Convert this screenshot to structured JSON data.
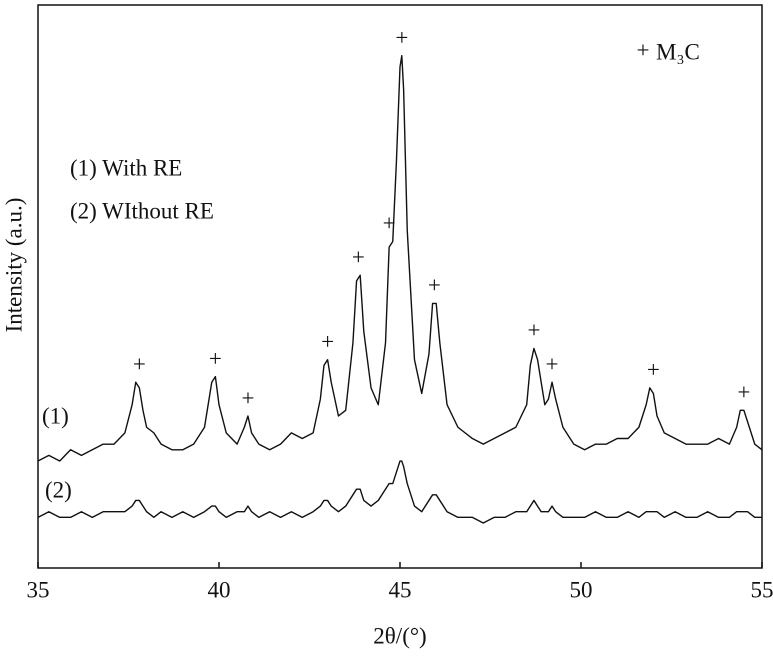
{
  "chart_data": {
    "type": "line",
    "xlabel": "2θ/(°)",
    "ylabel": "Intensity (a.u.)",
    "xlim": [
      35,
      55
    ],
    "xticks": [
      35,
      40,
      45,
      50,
      55
    ],
    "ylim": [
      0,
      100
    ],
    "grid": false,
    "x": [
      35,
      35.3,
      35.6,
      35.9,
      36.2,
      36.5,
      36.8,
      37.1,
      37.4,
      37.6,
      37.7,
      37.8,
      37.9,
      38.0,
      38.2,
      38.4,
      38.7,
      39.0,
      39.3,
      39.6,
      39.8,
      39.9,
      40.0,
      40.2,
      40.5,
      40.7,
      40.8,
      40.9,
      41.1,
      41.4,
      41.7,
      42.0,
      42.3,
      42.6,
      42.8,
      42.9,
      43.0,
      43.1,
      43.3,
      43.5,
      43.7,
      43.8,
      43.9,
      44.0,
      44.2,
      44.4,
      44.6,
      44.7,
      44.8,
      44.9,
      45.0,
      45.05,
      45.1,
      45.2,
      45.4,
      45.6,
      45.8,
      45.9,
      46.0,
      46.1,
      46.3,
      46.6,
      47.0,
      47.3,
      47.6,
      47.9,
      48.2,
      48.5,
      48.6,
      48.7,
      48.8,
      48.9,
      49.0,
      49.1,
      49.2,
      49.3,
      49.5,
      49.8,
      50.1,
      50.4,
      50.7,
      51.0,
      51.3,
      51.6,
      51.8,
      51.9,
      52.0,
      52.1,
      52.3,
      52.6,
      52.9,
      53.2,
      53.5,
      53.8,
      54.1,
      54.3,
      54.4,
      54.5,
      54.6,
      54.8,
      55
    ],
    "series": [
      {
        "name": "(1) With RE",
        "label": "(1)",
        "color": "#111111",
        "values": [
          19,
          20,
          19,
          21,
          20,
          21,
          22,
          22,
          24,
          29,
          33,
          32,
          28,
          25,
          24,
          22,
          21,
          21,
          22,
          25,
          33,
          34,
          29,
          24,
          22,
          25,
          27,
          24,
          22,
          21,
          22,
          24,
          23,
          24,
          30,
          36,
          37,
          33,
          27,
          28,
          40,
          51,
          52,
          42,
          32,
          29,
          40,
          57,
          58,
          72,
          89,
          91,
          85,
          60,
          37,
          31,
          38,
          47,
          47,
          40,
          29,
          25,
          23,
          22,
          23,
          24,
          25,
          29,
          36,
          39,
          37,
          33,
          29,
          30,
          33,
          30,
          25,
          22,
          21,
          22,
          22,
          23,
          23,
          25,
          29,
          32,
          31,
          27,
          24,
          23,
          22,
          22,
          22,
          23,
          22,
          25,
          28,
          28,
          26,
          22,
          21
        ]
      },
      {
        "name": "(2) WIthout RE",
        "label": "(2)",
        "color": "#111111",
        "values": [
          9,
          10,
          9,
          9,
          10,
          9,
          10,
          10,
          10,
          11,
          12,
          12,
          11,
          10,
          9,
          10,
          9,
          10,
          9,
          10,
          11,
          11,
          10,
          9,
          10,
          10,
          11,
          10,
          9,
          10,
          9,
          10,
          9,
          10,
          11,
          12,
          12,
          11,
          10,
          11,
          13,
          14,
          14,
          12,
          11,
          12,
          14,
          15,
          15,
          17,
          19,
          19,
          18,
          15,
          11,
          10,
          12,
          13,
          13,
          12,
          10,
          9,
          9,
          8,
          9,
          9,
          10,
          10,
          11,
          12,
          11,
          10,
          10,
          10,
          11,
          10,
          9,
          9,
          9,
          10,
          9,
          9,
          10,
          9,
          10,
          10,
          10,
          10,
          9,
          10,
          9,
          9,
          10,
          9,
          9,
          10,
          10,
          10,
          10,
          9,
          9
        ]
      }
    ],
    "peak_marker": "+",
    "phase": "M₃C",
    "peaks": [
      37.8,
      39.9,
      40.8,
      43.0,
      43.85,
      44.7,
      45.05,
      45.95,
      48.7,
      49.2,
      52.0,
      54.5
    ]
  }
}
